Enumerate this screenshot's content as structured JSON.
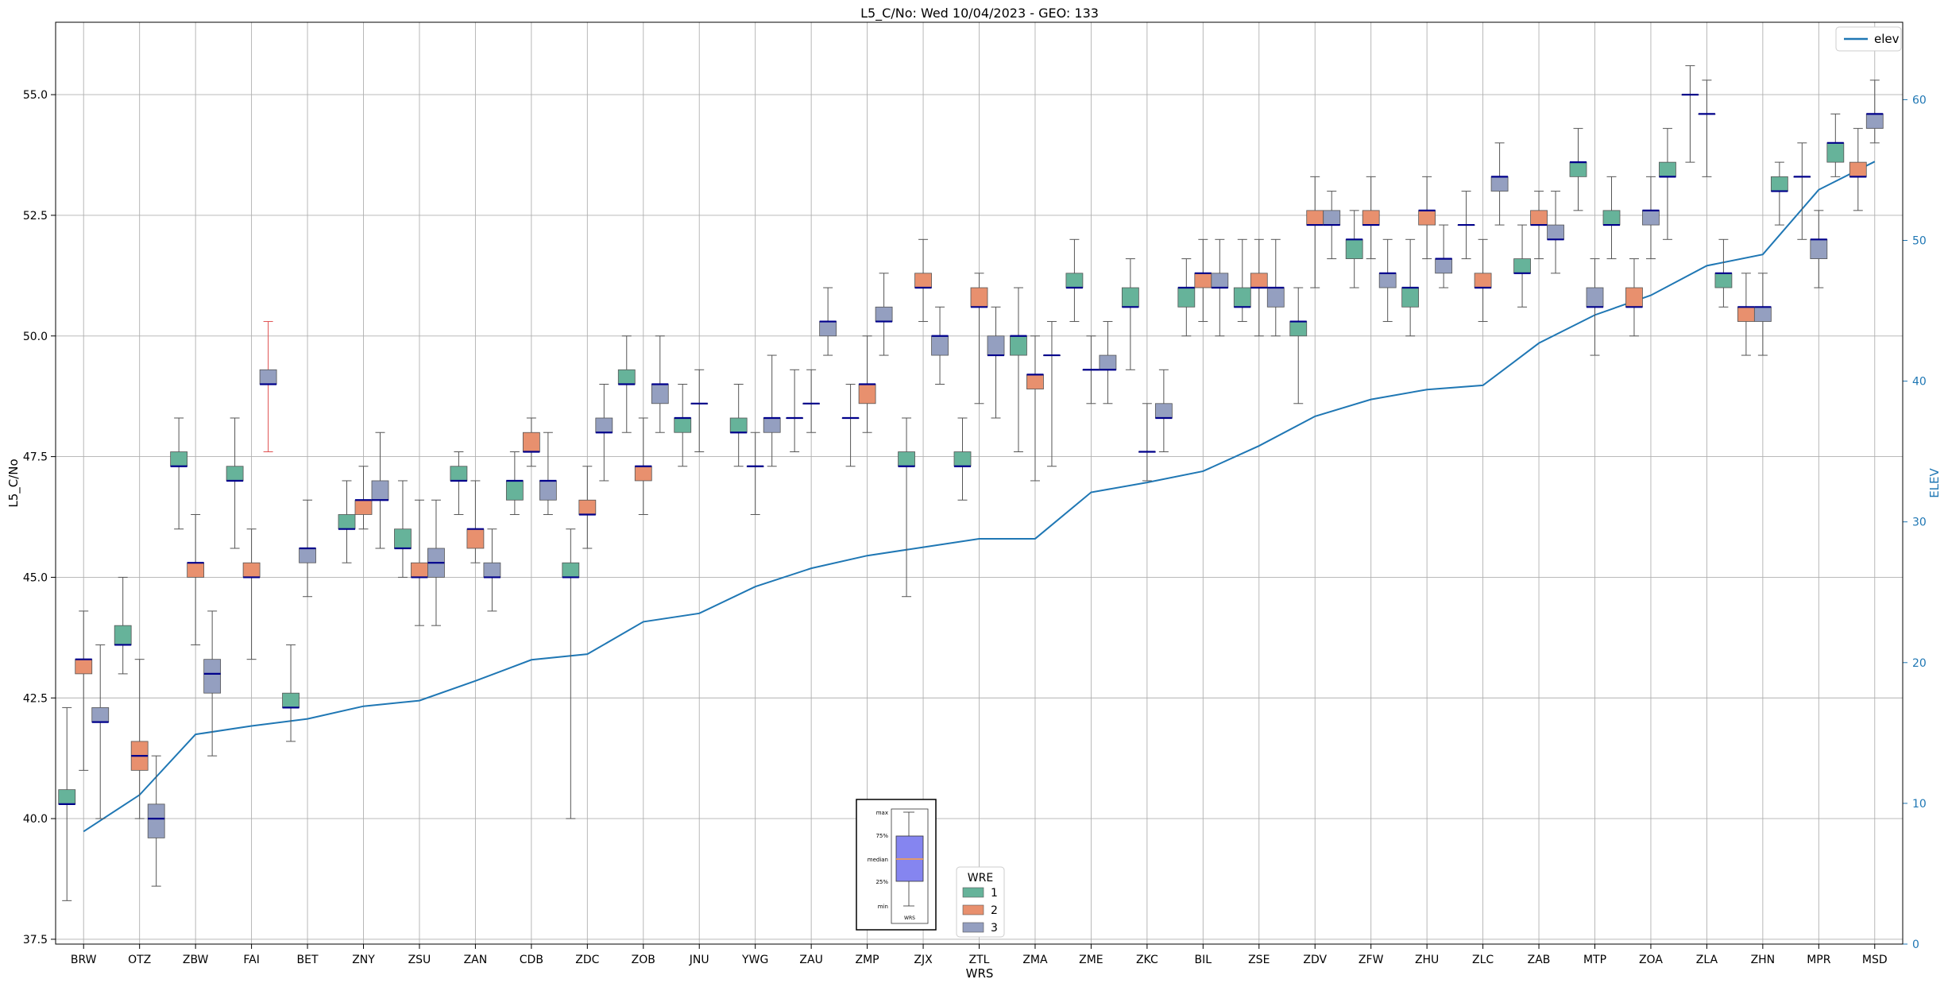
{
  "chart_data": {
    "type": "box",
    "title": "L5_C/No: Wed 10/04/2023 - GEO: 133",
    "xlabel": "WRS",
    "ylabel": "L5_C/No",
    "ylabel_right": "ELEV",
    "ylim": [
      37.4,
      56.5
    ],
    "ylim_right": [
      0,
      65.5
    ],
    "yticks": [
      "37.5",
      "40.0",
      "42.5",
      "45.0",
      "47.5",
      "50.0",
      "52.5",
      "55.0"
    ],
    "yticks_right": [
      "0",
      "10",
      "20",
      "30",
      "40",
      "50",
      "60"
    ],
    "grid": true,
    "categories": [
      "BRW",
      "OTZ",
      "ZBW",
      "FAI",
      "BET",
      "ZNY",
      "ZSU",
      "ZAN",
      "CDB",
      "ZDC",
      "ZOB",
      "JNU",
      "YWG",
      "ZAU",
      "ZMP",
      "ZJX",
      "ZTL",
      "ZMA",
      "ZME",
      "ZKC",
      "BIL",
      "ZSE",
      "ZDV",
      "ZFW",
      "ZHU",
      "ZLC",
      "ZAB",
      "MTP",
      "ZOA",
      "ZLA",
      "ZHN",
      "MPR",
      "MSD"
    ],
    "wre_colors": {
      "1": "#66b39a",
      "2": "#e8906e",
      "3": "#949fc0"
    },
    "median_color": "#00008b",
    "whisker_color": "#555555",
    "highlight_whisker_color": "#e05050",
    "boxes": [
      {
        "cat": "BRW",
        "wre": 1,
        "min": 38.3,
        "q1": 40.3,
        "median": 40.3,
        "q3": 40.6,
        "max": 42.3
      },
      {
        "cat": "BRW",
        "wre": 2,
        "min": 41.0,
        "q1": 43.0,
        "median": 43.3,
        "q3": 43.3,
        "max": 44.3
      },
      {
        "cat": "BRW",
        "wre": 3,
        "min": 40.0,
        "q1": 42.0,
        "median": 42.0,
        "q3": 42.3,
        "max": 43.6
      },
      {
        "cat": "OTZ",
        "wre": 1,
        "min": 43.0,
        "q1": 43.6,
        "median": 43.6,
        "q3": 44.0,
        "max": 45.0
      },
      {
        "cat": "OTZ",
        "wre": 2,
        "min": 40.0,
        "q1": 41.0,
        "median": 41.3,
        "q3": 41.6,
        "max": 43.3
      },
      {
        "cat": "OTZ",
        "wre": 3,
        "min": 38.6,
        "q1": 39.6,
        "median": 40.0,
        "q3": 40.3,
        "max": 41.3
      },
      {
        "cat": "ZBW",
        "wre": 1,
        "min": 46.0,
        "q1": 47.3,
        "median": 47.3,
        "q3": 47.6,
        "max": 48.3
      },
      {
        "cat": "ZBW",
        "wre": 2,
        "min": 43.6,
        "q1": 45.0,
        "median": 45.3,
        "q3": 45.3,
        "max": 46.3
      },
      {
        "cat": "ZBW",
        "wre": 3,
        "min": 41.3,
        "q1": 42.6,
        "median": 43.0,
        "q3": 43.3,
        "max": 44.3
      },
      {
        "cat": "FAI",
        "wre": 1,
        "min": 45.6,
        "q1": 47.0,
        "median": 47.0,
        "q3": 47.3,
        "max": 48.3
      },
      {
        "cat": "FAI",
        "wre": 2,
        "min": 43.3,
        "q1": 45.0,
        "median": 45.0,
        "q3": 45.3,
        "max": 46.0
      },
      {
        "cat": "FAI",
        "wre": 3,
        "min": 47.6,
        "q1": 49.0,
        "median": 49.0,
        "q3": 49.3,
        "max": 50.3,
        "highlight": true
      },
      {
        "cat": "BET",
        "wre": 1,
        "min": 41.6,
        "q1": 42.3,
        "median": 42.3,
        "q3": 42.6,
        "max": 43.6
      },
      {
        "cat": "BET",
        "wre": 3,
        "min": 44.6,
        "q1": 45.3,
        "median": 45.6,
        "q3": 45.6,
        "max": 46.6
      },
      {
        "cat": "ZNY",
        "wre": 1,
        "min": 45.3,
        "q1": 46.0,
        "median": 46.0,
        "q3": 46.3,
        "max": 47.0
      },
      {
        "cat": "ZNY",
        "wre": 2,
        "min": 46.0,
        "q1": 46.3,
        "median": 46.6,
        "q3": 46.6,
        "max": 47.3
      },
      {
        "cat": "ZNY",
        "wre": 3,
        "min": 45.6,
        "q1": 46.6,
        "median": 46.6,
        "q3": 47.0,
        "max": 48.0
      },
      {
        "cat": "ZSU",
        "wre": 1,
        "min": 45.0,
        "q1": 45.6,
        "median": 45.6,
        "q3": 46.0,
        "max": 47.0
      },
      {
        "cat": "ZSU",
        "wre": 2,
        "min": 44.0,
        "q1": 45.0,
        "median": 45.0,
        "q3": 45.3,
        "max": 46.6
      },
      {
        "cat": "ZSU",
        "wre": 3,
        "min": 44.0,
        "q1": 45.0,
        "median": 45.3,
        "q3": 45.6,
        "max": 46.6
      },
      {
        "cat": "ZAN",
        "wre": 1,
        "min": 46.3,
        "q1": 47.0,
        "median": 47.0,
        "q3": 47.3,
        "max": 47.6
      },
      {
        "cat": "ZAN",
        "wre": 2,
        "min": 45.3,
        "q1": 45.6,
        "median": 46.0,
        "q3": 46.0,
        "max": 47.0
      },
      {
        "cat": "ZAN",
        "wre": 3,
        "min": 44.3,
        "q1": 45.0,
        "median": 45.0,
        "q3": 45.3,
        "max": 46.0
      },
      {
        "cat": "CDB",
        "wre": 1,
        "min": 46.3,
        "q1": 46.6,
        "median": 47.0,
        "q3": 47.0,
        "max": 47.6
      },
      {
        "cat": "CDB",
        "wre": 2,
        "min": 47.3,
        "q1": 47.6,
        "median": 47.6,
        "q3": 48.0,
        "max": 48.3
      },
      {
        "cat": "CDB",
        "wre": 3,
        "min": 46.3,
        "q1": 46.6,
        "median": 47.0,
        "q3": 47.0,
        "max": 48.0
      },
      {
        "cat": "ZDC",
        "wre": 1,
        "min": 40.0,
        "q1": 45.0,
        "median": 45.0,
        "q3": 45.3,
        "max": 46.0
      },
      {
        "cat": "ZDC",
        "wre": 2,
        "min": 45.6,
        "q1": 46.3,
        "median": 46.3,
        "q3": 46.6,
        "max": 47.3
      },
      {
        "cat": "ZDC",
        "wre": 3,
        "min": 47.0,
        "q1": 48.0,
        "median": 48.0,
        "q3": 48.3,
        "max": 49.0
      },
      {
        "cat": "ZOB",
        "wre": 1,
        "min": 48.0,
        "q1": 49.0,
        "median": 49.0,
        "q3": 49.3,
        "max": 50.0
      },
      {
        "cat": "ZOB",
        "wre": 2,
        "min": 46.3,
        "q1": 47.0,
        "median": 47.3,
        "q3": 47.3,
        "max": 48.3
      },
      {
        "cat": "ZOB",
        "wre": 3,
        "min": 48.0,
        "q1": 48.6,
        "median": 49.0,
        "q3": 49.0,
        "max": 50.0
      },
      {
        "cat": "JNU",
        "wre": 1,
        "min": 47.3,
        "q1": 48.0,
        "median": 48.3,
        "q3": 48.3,
        "max": 49.0
      },
      {
        "cat": "JNU",
        "wre": 3,
        "min": 47.6,
        "q1": 48.6,
        "median": 48.6,
        "q3": 48.6,
        "max": 49.3
      },
      {
        "cat": "YWG",
        "wre": 1,
        "min": 47.3,
        "q1": 48.0,
        "median": 48.0,
        "q3": 48.3,
        "max": 49.0
      },
      {
        "cat": "YWG",
        "wre": 3,
        "min": 46.3,
        "q1": 47.3,
        "median": 47.3,
        "q3": 47.3,
        "max": 48.0
      },
      {
        "cat": "YWG",
        "wre": 3,
        "min": 47.3,
        "q1": 48.0,
        "median": 48.3,
        "q3": 48.3,
        "max": 49.6
      },
      {
        "cat": "ZAU",
        "wre": 1,
        "min": 47.6,
        "q1": 48.3,
        "median": 48.3,
        "q3": 48.3,
        "max": 49.3
      },
      {
        "cat": "ZAU",
        "wre": 2,
        "min": 48.0,
        "q1": 48.6,
        "median": 48.6,
        "q3": 48.6,
        "max": 49.3
      },
      {
        "cat": "ZAU",
        "wre": 3,
        "min": 49.6,
        "q1": 50.0,
        "median": 50.3,
        "q3": 50.3,
        "max": 51.0
      },
      {
        "cat": "ZMP",
        "wre": 1,
        "min": 47.3,
        "q1": 48.3,
        "median": 48.3,
        "q3": 48.3,
        "max": 49.0
      },
      {
        "cat": "ZMP",
        "wre": 2,
        "min": 48.0,
        "q1": 48.6,
        "median": 49.0,
        "q3": 49.0,
        "max": 50.0
      },
      {
        "cat": "ZMP",
        "wre": 3,
        "min": 49.6,
        "q1": 50.3,
        "median": 50.3,
        "q3": 50.6,
        "max": 51.3
      },
      {
        "cat": "ZJX",
        "wre": 1,
        "min": 44.6,
        "q1": 47.3,
        "median": 47.3,
        "q3": 47.6,
        "max": 48.3
      },
      {
        "cat": "ZJX",
        "wre": 2,
        "min": 50.3,
        "q1": 51.0,
        "median": 51.0,
        "q3": 51.3,
        "max": 52.0
      },
      {
        "cat": "ZJX",
        "wre": 3,
        "min": 49.0,
        "q1": 49.6,
        "median": 50.0,
        "q3": 50.0,
        "max": 50.6
      },
      {
        "cat": "ZTL",
        "wre": 1,
        "min": 46.6,
        "q1": 47.3,
        "median": 47.3,
        "q3": 47.6,
        "max": 48.3
      },
      {
        "cat": "ZTL",
        "wre": 2,
        "min": 48.6,
        "q1": 50.6,
        "median": 50.6,
        "q3": 51.0,
        "max": 51.3
      },
      {
        "cat": "ZTL",
        "wre": 3,
        "min": 48.3,
        "q1": 49.6,
        "median": 49.6,
        "q3": 50.0,
        "max": 50.6
      },
      {
        "cat": "ZMA",
        "wre": 1,
        "min": 47.6,
        "q1": 49.6,
        "median": 50.0,
        "q3": 50.0,
        "max": 51.0
      },
      {
        "cat": "ZMA",
        "wre": 2,
        "min": 47.0,
        "q1": 48.9,
        "median": 49.2,
        "q3": 49.2,
        "max": 50.0
      },
      {
        "cat": "ZMA",
        "wre": 3,
        "min": 47.3,
        "q1": 49.6,
        "median": 49.6,
        "q3": 49.6,
        "max": 50.3
      },
      {
        "cat": "ZME",
        "wre": 1,
        "min": 50.3,
        "q1": 51.0,
        "median": 51.0,
        "q3": 51.3,
        "max": 52.0
      },
      {
        "cat": "ZME",
        "wre": 3,
        "min": 48.6,
        "q1": 49.3,
        "median": 49.3,
        "q3": 49.3,
        "max": 50.0
      },
      {
        "cat": "ZME",
        "wre": 3,
        "min": 48.6,
        "q1": 49.3,
        "median": 49.3,
        "q3": 49.6,
        "max": 50.3
      },
      {
        "cat": "ZKC",
        "wre": 1,
        "min": 49.3,
        "q1": 50.6,
        "median": 50.6,
        "q3": 51.0,
        "max": 51.6
      },
      {
        "cat": "ZKC",
        "wre": 3,
        "min": 47.0,
        "q1": 47.6,
        "median": 47.6,
        "q3": 47.6,
        "max": 48.6
      },
      {
        "cat": "ZKC",
        "wre": 3,
        "min": 47.6,
        "q1": 48.3,
        "median": 48.3,
        "q3": 48.6,
        "max": 49.3
      },
      {
        "cat": "BIL",
        "wre": 1,
        "min": 50.0,
        "q1": 50.6,
        "median": 51.0,
        "q3": 51.0,
        "max": 51.6
      },
      {
        "cat": "BIL",
        "wre": 2,
        "min": 50.3,
        "q1": 51.0,
        "median": 51.3,
        "q3": 51.3,
        "max": 52.0
      },
      {
        "cat": "BIL",
        "wre": 3,
        "min": 50.0,
        "q1": 51.0,
        "median": 51.0,
        "q3": 51.3,
        "max": 52.0
      },
      {
        "cat": "ZSE",
        "wre": 1,
        "min": 50.3,
        "q1": 50.6,
        "median": 50.6,
        "q3": 51.0,
        "max": 52.0
      },
      {
        "cat": "ZSE",
        "wre": 2,
        "min": 50.0,
        "q1": 51.0,
        "median": 51.0,
        "q3": 51.3,
        "max": 52.0
      },
      {
        "cat": "ZSE",
        "wre": 3,
        "min": 50.0,
        "q1": 50.6,
        "median": 51.0,
        "q3": 51.0,
        "max": 52.0
      },
      {
        "cat": "ZDV",
        "wre": 1,
        "min": 48.6,
        "q1": 50.0,
        "median": 50.3,
        "q3": 50.3,
        "max": 51.0
      },
      {
        "cat": "ZDV",
        "wre": 2,
        "min": 51.0,
        "q1": 52.3,
        "median": 52.3,
        "q3": 52.6,
        "max": 53.3
      },
      {
        "cat": "ZDV",
        "wre": 3,
        "min": 51.6,
        "q1": 52.3,
        "median": 52.3,
        "q3": 52.6,
        "max": 53.0
      },
      {
        "cat": "ZFW",
        "wre": 1,
        "min": 51.0,
        "q1": 51.6,
        "median": 52.0,
        "q3": 52.0,
        "max": 52.6
      },
      {
        "cat": "ZFW",
        "wre": 2,
        "min": 51.6,
        "q1": 52.3,
        "median": 52.3,
        "q3": 52.6,
        "max": 53.3
      },
      {
        "cat": "ZFW",
        "wre": 3,
        "min": 50.3,
        "q1": 51.0,
        "median": 51.3,
        "q3": 51.3,
        "max": 52.0
      },
      {
        "cat": "ZHU",
        "wre": 1,
        "min": 50.0,
        "q1": 50.6,
        "median": 51.0,
        "q3": 51.0,
        "max": 52.0
      },
      {
        "cat": "ZHU",
        "wre": 2,
        "min": 51.6,
        "q1": 52.3,
        "median": 52.6,
        "q3": 52.6,
        "max": 53.3
      },
      {
        "cat": "ZHU",
        "wre": 3,
        "min": 51.0,
        "q1": 51.3,
        "median": 51.6,
        "q3": 51.6,
        "max": 52.3
      },
      {
        "cat": "ZLC",
        "wre": 1,
        "min": 51.6,
        "q1": 52.3,
        "median": 52.3,
        "q3": 52.3,
        "max": 53.0
      },
      {
        "cat": "ZLC",
        "wre": 2,
        "min": 50.3,
        "q1": 51.0,
        "median": 51.0,
        "q3": 51.3,
        "max": 52.0
      },
      {
        "cat": "ZLC",
        "wre": 3,
        "min": 52.3,
        "q1": 53.0,
        "median": 53.3,
        "q3": 53.3,
        "max": 54.0
      },
      {
        "cat": "ZAB",
        "wre": 1,
        "min": 50.6,
        "q1": 51.3,
        "median": 51.3,
        "q3": 51.6,
        "max": 52.3
      },
      {
        "cat": "ZAB",
        "wre": 2,
        "min": 51.6,
        "q1": 52.3,
        "median": 52.3,
        "q3": 52.6,
        "max": 53.0
      },
      {
        "cat": "ZAB",
        "wre": 3,
        "min": 51.3,
        "q1": 52.0,
        "median": 52.0,
        "q3": 52.3,
        "max": 53.0
      },
      {
        "cat": "MTP",
        "wre": 1,
        "min": 52.6,
        "q1": 53.3,
        "median": 53.6,
        "q3": 53.6,
        "max": 54.3
      },
      {
        "cat": "MTP",
        "wre": 3,
        "min": 49.6,
        "q1": 50.6,
        "median": 50.6,
        "q3": 51.0,
        "max": 51.6
      },
      {
        "cat": "MTP",
        "wre": 1,
        "min": 51.6,
        "q1": 52.3,
        "median": 52.3,
        "q3": 52.6,
        "max": 53.3
      },
      {
        "cat": "ZOA",
        "wre": 2,
        "min": 50.0,
        "q1": 50.6,
        "median": 50.6,
        "q3": 51.0,
        "max": 51.6
      },
      {
        "cat": "ZOA",
        "wre": 3,
        "min": 51.6,
        "q1": 52.3,
        "median": 52.6,
        "q3": 52.6,
        "max": 53.3
      },
      {
        "cat": "ZOA",
        "wre": 1,
        "min": 52.0,
        "q1": 53.3,
        "median": 53.3,
        "q3": 53.6,
        "max": 54.3
      },
      {
        "cat": "ZLA",
        "wre": 2,
        "min": 53.6,
        "q1": 55.0,
        "median": 55.0,
        "q3": 55.0,
        "max": 55.6
      },
      {
        "cat": "ZLA",
        "wre": 3,
        "min": 53.3,
        "q1": 54.6,
        "median": 54.6,
        "q3": 54.6,
        "max": 55.3
      },
      {
        "cat": "ZLA",
        "wre": 1,
        "min": 50.6,
        "q1": 51.0,
        "median": 51.3,
        "q3": 51.3,
        "max": 52.0
      },
      {
        "cat": "ZHN",
        "wre": 2,
        "min": 49.6,
        "q1": 50.3,
        "median": 50.6,
        "q3": 50.6,
        "max": 51.3
      },
      {
        "cat": "ZHN",
        "wre": 3,
        "min": 49.6,
        "q1": 50.3,
        "median": 50.6,
        "q3": 50.6,
        "max": 51.3
      },
      {
        "cat": "ZHN",
        "wre": 1,
        "min": 52.3,
        "q1": 53.0,
        "median": 53.0,
        "q3": 53.3,
        "max": 53.6
      },
      {
        "cat": "MPR",
        "wre": 2,
        "min": 52.0,
        "q1": 53.3,
        "median": 53.3,
        "q3": 53.3,
        "max": 54.0
      },
      {
        "cat": "MPR",
        "wre": 3,
        "min": 51.0,
        "q1": 51.6,
        "median": 52.0,
        "q3": 52.0,
        "max": 52.6
      },
      {
        "cat": "MPR",
        "wre": 1,
        "min": 53.3,
        "q1": 53.6,
        "median": 54.0,
        "q3": 54.0,
        "max": 54.6
      },
      {
        "cat": "MSD",
        "wre": 2,
        "min": 52.6,
        "q1": 53.3,
        "median": 53.3,
        "q3": 53.6,
        "max": 54.3
      },
      {
        "cat": "MSD",
        "wre": 3,
        "min": 54.0,
        "q1": 54.3,
        "median": 54.6,
        "q3": 54.6,
        "max": 55.3
      }
    ],
    "elev": {
      "name": "elev",
      "color": "#1f77b4",
      "values": [
        8.0,
        10.6,
        14.9,
        15.5,
        16.0,
        16.9,
        17.3,
        18.7,
        20.2,
        20.6,
        22.9,
        23.5,
        25.4,
        26.7,
        27.6,
        28.2,
        28.8,
        28.8,
        32.1,
        32.8,
        33.6,
        35.4,
        37.5,
        38.7,
        39.4,
        39.7,
        42.7,
        44.7,
        46.1,
        48.2,
        49.0,
        53.6,
        55.6
      ]
    },
    "legend_wre": {
      "title": "WRE",
      "items": [
        "1",
        "2",
        "3"
      ]
    },
    "legend_elev": {
      "position": "top-right",
      "label": "elev"
    },
    "inset": {
      "labels": [
        "max",
        "75%",
        "median",
        "25%",
        "min"
      ],
      "xlabel": "WRS",
      "box_color": "#8585f0",
      "median_color": "#ffa040"
    }
  }
}
